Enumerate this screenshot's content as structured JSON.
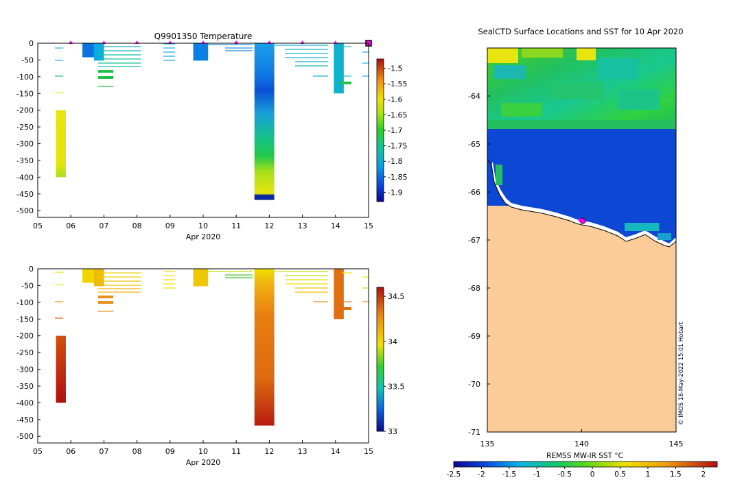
{
  "chart_data": [
    {
      "type": "heatmap",
      "variable": "temperature",
      "title": "Q9901350  Temperature",
      "xlabel": "Apr 2020",
      "ylabel": "",
      "xticks": [
        "05",
        "06",
        "07",
        "08",
        "09",
        "10",
        "11",
        "12",
        "13",
        "14",
        "15"
      ],
      "xlim": [
        5,
        15
      ],
      "yticks": [
        "0",
        "-50",
        "-100",
        "-150",
        "-200",
        "-250",
        "-300",
        "-350",
        "-400",
        "-450",
        "-500"
      ],
      "ylim": [
        -520,
        0
      ],
      "colorbar": {
        "ticks": [
          "-1.5",
          "-1.55",
          "-1.6",
          "-1.65",
          "-1.7",
          "-1.75",
          "-1.8",
          "-1.85",
          "-1.9"
        ],
        "range": [
          -1.93,
          -1.47
        ]
      },
      "surface_markers_day": [
        6,
        7,
        8,
        9,
        10,
        11,
        12,
        13,
        14
      ],
      "latest_marker_day": 15,
      "profiles": [
        {
          "day": 5.55,
          "days": 0.3,
          "top": -200,
          "bottom": -400,
          "value": -1.64,
          "gradient": true
        },
        {
          "day": 6.35,
          "days": 0.35,
          "top": 0,
          "bottom": -42,
          "value": -1.83
        },
        {
          "day": 6.7,
          "days": 0.3,
          "top": 0,
          "bottom": -52,
          "value": -1.79
        },
        {
          "day": 9.7,
          "days": 0.45,
          "top": 0,
          "bottom": -52,
          "value": -1.82
        },
        {
          "day": 11.55,
          "days": 0.6,
          "top": 0,
          "bottom": -468,
          "value": -1.78,
          "gradient": true
        },
        {
          "day": 13.95,
          "days": 0.3,
          "top": 0,
          "bottom": -150,
          "value": -1.77
        }
      ]
    },
    {
      "type": "heatmap",
      "variable": "salinity",
      "title": "",
      "xlabel": "Apr 2020",
      "ylabel": "",
      "xticks": [
        "05",
        "06",
        "07",
        "08",
        "09",
        "10",
        "11",
        "12",
        "13",
        "14",
        "15"
      ],
      "xlim": [
        5,
        15
      ],
      "yticks": [
        "0",
        "-50",
        "-100",
        "-150",
        "-200",
        "-250",
        "-300",
        "-350",
        "-400",
        "-450",
        "-500"
      ],
      "ylim": [
        -520,
        0
      ],
      "colorbar": {
        "ticks": [
          "34.5",
          "34",
          "33.5",
          "33"
        ],
        "range": [
          33,
          34.6
        ]
      },
      "profiles": [
        {
          "day": 5.55,
          "days": 0.3,
          "top": -200,
          "bottom": -400,
          "value": 34.5,
          "gradient": true
        },
        {
          "day": 6.35,
          "days": 0.35,
          "top": 0,
          "bottom": -42,
          "value": 34.0
        },
        {
          "day": 6.7,
          "days": 0.3,
          "top": 0,
          "bottom": -52,
          "value": 34.1
        },
        {
          "day": 9.7,
          "days": 0.45,
          "top": 0,
          "bottom": -52,
          "value": 34.05
        },
        {
          "day": 11.55,
          "days": 0.6,
          "top": 0,
          "bottom": -468,
          "value": 34.3,
          "gradient": true
        },
        {
          "day": 13.95,
          "days": 0.3,
          "top": 0,
          "bottom": -150,
          "value": 34.35
        }
      ]
    },
    {
      "type": "heatmap",
      "variable": "sst-map",
      "title": "SealCTD Surface Locations and SST for 10 Apr 2020",
      "xlabel": "",
      "xticks": [
        "135",
        "140",
        "145"
      ],
      "xlim": [
        135,
        145
      ],
      "yticks": [
        "-64",
        "-65",
        "-66",
        "-67",
        "-68",
        "-69",
        "-70",
        "-71"
      ],
      "ylim": [
        -71,
        -63
      ],
      "colorbar": {
        "label": "REMSS MW-IR SST °C",
        "ticks": [
          "-2.5",
          "-2",
          "-1.5",
          "-1",
          "-0.5",
          "0",
          "0.5",
          "1",
          "1.5",
          "2"
        ],
        "range": [
          -2.5,
          2.25
        ]
      },
      "regions": [
        {
          "name": "ocean-north",
          "lat_top": -63,
          "lat_bottom": -64.75,
          "value": -0.4
        },
        {
          "name": "ocean-south",
          "lat_top": -64.75,
          "lat_bottom": -66.6,
          "value": -1.85
        }
      ],
      "seal_location": {
        "lon": 140.0,
        "lat": -66.65
      },
      "annotation": "© IMOS 18-May-2022 15:01 Hobart"
    }
  ]
}
